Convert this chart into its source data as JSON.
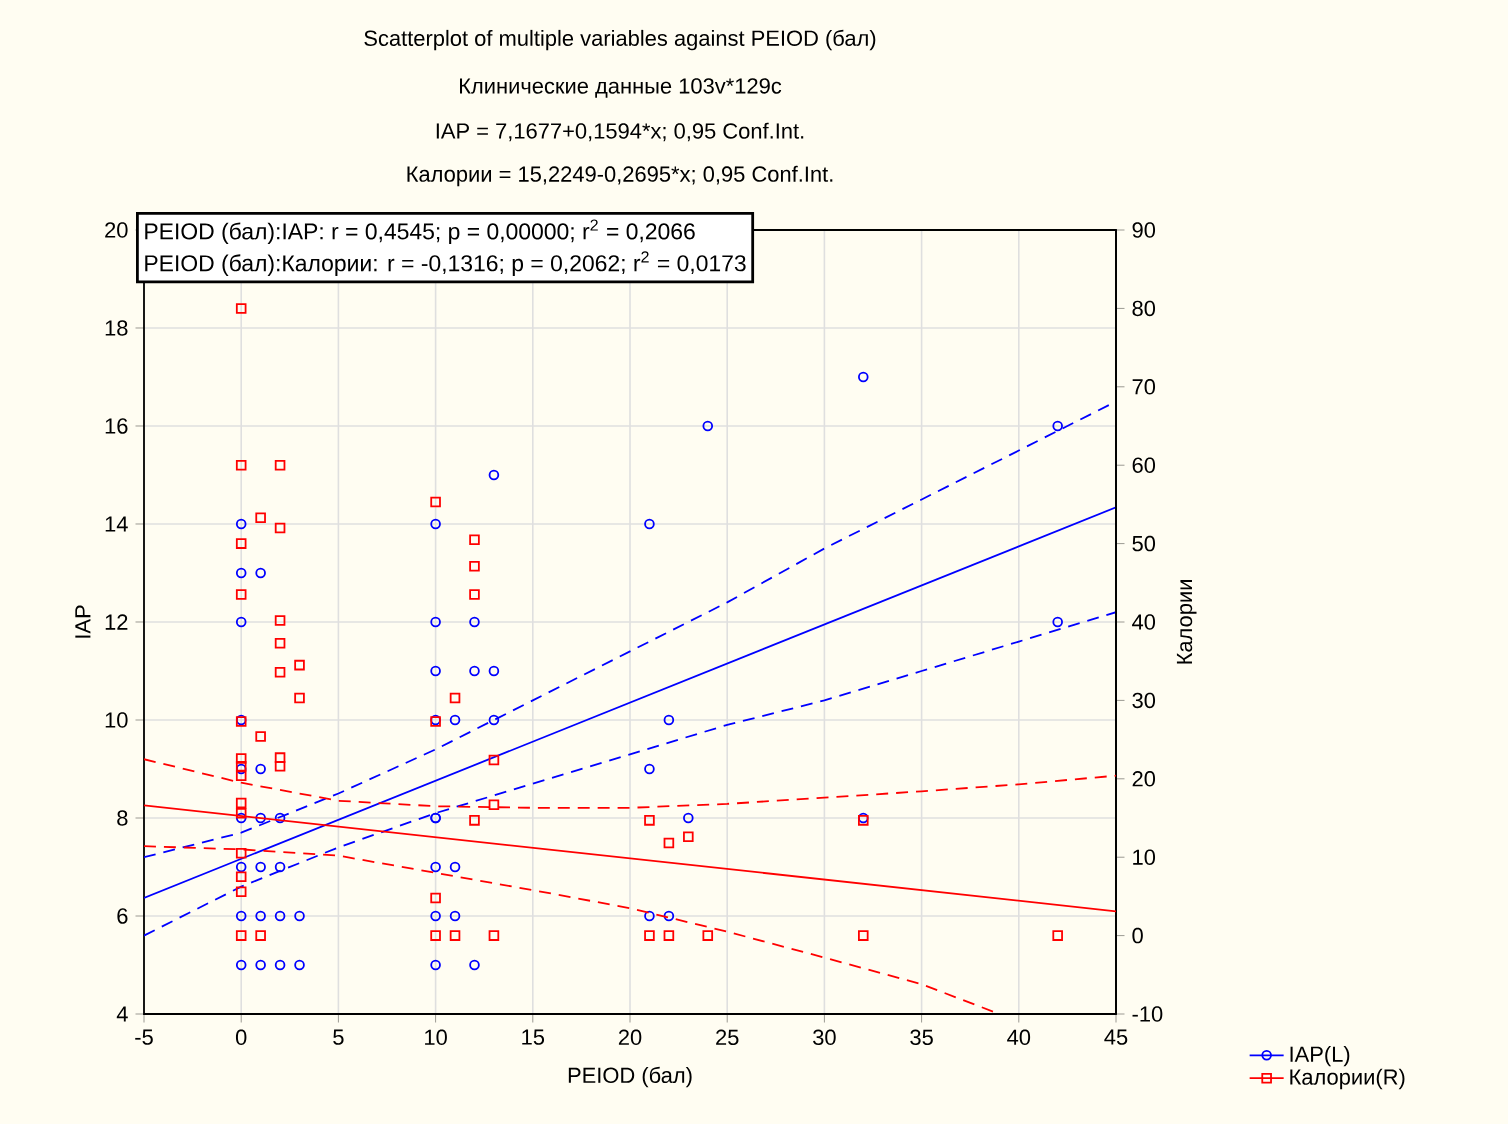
{
  "chart_data": {
    "type": "scatter",
    "title": "Scatterplot of multiple variables against PEIOD (бал)",
    "subtitle": "Клинические данные 103v*129c",
    "annotations": [
      "IAP = 7,1677+0,1594*x; 0,95 Conf.Int.",
      "Калории = 15,2249-0,2695*x; 0,95 Conf.Int.",
      "PEIOD (бал):IAP:   r = 0,4545; p = 0,00000; r$^{2}$ = 0,2066",
      "PEIOD (бал):Калории:   r = -0,1316; p = 0,2062; r$^{2}$ = 0,0173"
    ],
    "xlabel": "PEIOD (бал)",
    "ylabel": "IAP",
    "y2label": "Калории",
    "xlim": [
      -5,
      45
    ],
    "xticks": [
      -5,
      0,
      5,
      10,
      15,
      20,
      25,
      30,
      35,
      40,
      45
    ],
    "ylim": [
      4,
      20
    ],
    "yticks": [
      4,
      6,
      8,
      10,
      12,
      14,
      16,
      18,
      20
    ],
    "y2lim": [
      -10,
      90
    ],
    "y2ticks": [
      -10,
      0,
      10,
      20,
      30,
      40,
      50,
      60,
      70,
      80,
      90
    ],
    "grid": true,
    "legend": "bottom right",
    "series": [
      {
        "name": "IAP(L)",
        "marker": "circle",
        "color": "#0000ff",
        "axis": "y",
        "x": [
          0,
          0,
          0,
          0,
          0,
          0,
          0,
          0,
          0,
          1,
          1,
          1,
          1,
          1,
          1,
          2,
          2,
          2,
          2,
          3,
          3,
          10,
          10,
          10,
          10,
          10,
          10,
          10,
          10,
          10,
          11,
          11,
          11,
          12,
          12,
          12,
          13,
          13,
          13,
          21,
          21,
          21,
          22,
          22,
          23,
          24,
          32,
          32,
          42,
          42
        ],
        "values": [
          14,
          13,
          12,
          10,
          9,
          8,
          7,
          6,
          5,
          13,
          9,
          8,
          7,
          6,
          5,
          8,
          7,
          6,
          5,
          6,
          5,
          14,
          12,
          11,
          10,
          8,
          8,
          7,
          6,
          5,
          10,
          7,
          6,
          12,
          11,
          5,
          15,
          11,
          10,
          14,
          9,
          6,
          10,
          6,
          8,
          16,
          17,
          8,
          16,
          12
        ]
      },
      {
        "name": "Калории(R)",
        "marker": "square",
        "color": "#ff0000",
        "axis": "y2",
        "x": [
          0,
          0,
          0,
          0,
          0,
          0,
          0,
          0,
          0,
          0,
          0,
          0,
          0,
          0,
          1,
          1,
          1,
          2,
          2,
          2,
          2,
          2,
          2,
          2,
          3,
          3,
          10,
          10,
          10,
          10,
          11,
          11,
          12,
          12,
          12,
          12,
          13,
          13,
          13,
          21,
          21,
          22,
          22,
          23,
          24,
          32,
          32,
          42
        ],
        "values": [
          80,
          60,
          50,
          43.5,
          27.3,
          22.6,
          21.6,
          20.4,
          16.9,
          15.6,
          10.5,
          7.5,
          5.6,
          0,
          53.3,
          25.4,
          0,
          60,
          52,
          40.2,
          37.3,
          33.6,
          22.7,
          21.6,
          34.5,
          30.3,
          55.3,
          27.3,
          4.8,
          0,
          30.3,
          0,
          50.5,
          47.1,
          43.5,
          14.7,
          22.4,
          16.7,
          0,
          14.7,
          0,
          11.8,
          0,
          12.6,
          0,
          14.7,
          0,
          0
        ]
      },
      {
        "type": "line",
        "line_style": "solid",
        "color": "#0000ff",
        "axis": "y",
        "x": [
          -5,
          45
        ],
        "values": [
          6.37,
          14.34
        ]
      },
      {
        "type": "line",
        "line_style": "dashed",
        "color": "#0000ff",
        "axis": "y",
        "x": [
          -5,
          0,
          5,
          10,
          15,
          20,
          25,
          30,
          35,
          40,
          45
        ],
        "values": [
          7.2,
          7.7,
          8.5,
          9.4,
          10.4,
          11.4,
          12.4,
          13.5,
          14.5,
          15.5,
          16.5
        ]
      },
      {
        "type": "line",
        "line_style": "dashed",
        "color": "#0000ff",
        "axis": "y",
        "x": [
          -5,
          0,
          5,
          10,
          15,
          20,
          25,
          30,
          35,
          40,
          45
        ],
        "values": [
          5.6,
          6.6,
          7.4,
          8.1,
          8.7,
          9.3,
          9.9,
          10.4,
          11.0,
          11.6,
          12.2
        ]
      },
      {
        "type": "line",
        "line_style": "solid",
        "color": "#ff0000",
        "axis": "y2",
        "x": [
          -5,
          45
        ],
        "values": [
          16.6,
          3.1
        ]
      },
      {
        "type": "line",
        "line_style": "dashed",
        "color": "#ff0000",
        "axis": "y2",
        "x": [
          -5,
          0,
          5,
          10,
          15,
          20,
          25,
          30,
          35,
          40,
          45
        ],
        "values": [
          22.5,
          19.5,
          17.2,
          16.5,
          16.3,
          16.3,
          16.8,
          17.6,
          18.4,
          19.3,
          20.4
        ]
      },
      {
        "type": "line",
        "line_style": "dashed",
        "color": "#ff0000",
        "axis": "y2",
        "x": [
          -5,
          0,
          5,
          10,
          15,
          20,
          25,
          30,
          35,
          39
        ],
        "values": [
          11.4,
          11.0,
          10.2,
          8.0,
          5.8,
          3.5,
          0.5,
          -2.8,
          -6.2,
          -10
        ]
      }
    ]
  }
}
